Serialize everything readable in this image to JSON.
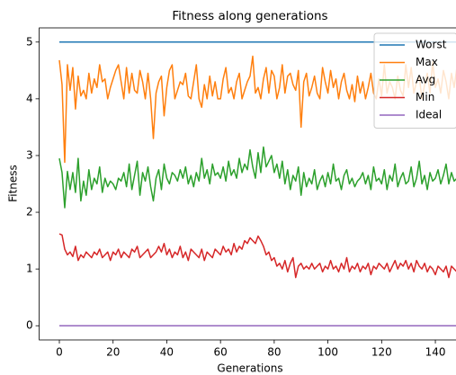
{
  "chart_data": {
    "type": "line",
    "title": "Fitness along generations",
    "xlabel": "Generations",
    "ylabel": "Fitness",
    "x": [
      0,
      1,
      2,
      3,
      4,
      5,
      6,
      7,
      8,
      9,
      10,
      11,
      12,
      13,
      14,
      15,
      16,
      17,
      18,
      19,
      20,
      21,
      22,
      23,
      24,
      25,
      26,
      27,
      28,
      29,
      30,
      31,
      32,
      33,
      34,
      35,
      36,
      37,
      38,
      39,
      40,
      41,
      42,
      43,
      44,
      45,
      46,
      47,
      48,
      49,
      50,
      51,
      52,
      53,
      54,
      55,
      56,
      57,
      58,
      59,
      60,
      61,
      62,
      63,
      64,
      65,
      66,
      67,
      68,
      69,
      70,
      71,
      72,
      73,
      74,
      75,
      76,
      77,
      78,
      79,
      80,
      81,
      82,
      83,
      84,
      85,
      86,
      87,
      88,
      89,
      90,
      91,
      92,
      93,
      94,
      95,
      96,
      97,
      98,
      99,
      100,
      101,
      102,
      103,
      104,
      105,
      106,
      107,
      108,
      109,
      110,
      111,
      112,
      113,
      114,
      115,
      116,
      117,
      118,
      119,
      120,
      121,
      122,
      123,
      124,
      125,
      126,
      127,
      128,
      129,
      130,
      131,
      132,
      133,
      134,
      135,
      136,
      137,
      138,
      139,
      140,
      141,
      142,
      143,
      144,
      145,
      146,
      147,
      148,
      149,
      150
    ],
    "series": [
      {
        "name": "Worst",
        "color": "#1f77b4",
        "values": [
          5,
          5,
          5,
          5,
          5,
          5,
          5,
          5,
          5,
          5,
          5,
          5,
          5,
          5,
          5,
          5,
          5,
          5,
          5,
          5,
          5,
          5,
          5,
          5,
          5,
          5,
          5,
          5,
          5,
          5,
          5,
          5,
          5,
          5,
          5,
          5,
          5,
          5,
          5,
          5,
          5,
          5,
          5,
          5,
          5,
          5,
          5,
          5,
          5,
          5,
          5,
          5,
          5,
          5,
          5,
          5,
          5,
          5,
          5,
          5,
          5,
          5,
          5,
          5,
          5,
          5,
          5,
          5,
          5,
          5,
          5,
          5,
          5,
          5,
          5,
          5,
          5,
          5,
          5,
          5,
          5,
          5,
          5,
          5,
          5,
          5,
          5,
          5,
          5,
          5,
          5,
          5,
          5,
          5,
          5,
          5,
          5,
          5,
          5,
          5,
          5,
          5,
          5,
          5,
          5,
          5,
          5,
          5,
          5,
          5,
          5,
          5,
          5,
          5,
          5,
          5,
          5,
          5,
          5,
          5,
          5,
          5,
          5,
          5,
          5,
          5,
          5,
          5,
          5,
          5,
          5,
          5,
          5,
          5,
          5,
          5,
          5,
          5,
          5,
          5,
          5,
          5,
          5,
          5,
          5,
          5,
          5,
          5,
          5,
          5,
          5
        ]
      },
      {
        "name": "Max",
        "color": "#ff7f0e",
        "values": [
          4.68,
          4.25,
          2.88,
          4.6,
          4.15,
          4.55,
          3.82,
          4.4,
          4.05,
          4.15,
          4.0,
          4.45,
          4.1,
          4.35,
          4.2,
          4.6,
          4.3,
          4.35,
          4.0,
          4.2,
          4.35,
          4.5,
          4.6,
          4.3,
          4.0,
          4.55,
          4.1,
          4.45,
          4.15,
          4.1,
          4.5,
          4.3,
          4.0,
          4.45,
          4.0,
          3.3,
          4.1,
          4.3,
          4.4,
          3.7,
          4.2,
          4.5,
          4.6,
          4.0,
          4.15,
          4.3,
          4.25,
          4.45,
          4.05,
          4.0,
          4.3,
          4.6,
          4.0,
          3.85,
          4.25,
          4.0,
          4.4,
          4.05,
          4.3,
          4.0,
          4.0,
          4.35,
          4.55,
          4.1,
          4.2,
          4.0,
          4.3,
          4.45,
          4.0,
          4.15,
          4.3,
          4.4,
          4.75,
          4.1,
          4.2,
          4.0,
          4.35,
          4.55,
          4.1,
          4.5,
          4.4,
          4.0,
          4.2,
          4.6,
          4.1,
          4.4,
          4.45,
          4.25,
          4.15,
          4.5,
          3.5,
          4.3,
          4.45,
          4.05,
          4.2,
          4.4,
          4.1,
          4.0,
          4.55,
          4.3,
          4.1,
          4.5,
          4.2,
          4.35,
          4.0,
          4.3,
          4.45,
          4.15,
          4.0,
          4.25,
          3.95,
          4.4,
          4.1,
          4.3,
          4.0,
          4.2,
          4.45,
          4.1,
          4.0,
          4.35,
          4.05,
          4.6,
          4.1,
          4.3,
          4.2,
          4.0,
          4.4,
          4.15,
          4.05,
          4.6,
          4.2,
          4.55,
          4.1,
          4.3,
          4.4,
          4.0,
          4.25,
          4.45,
          4.1,
          4.65,
          4.2,
          4.35,
          4.1,
          4.5,
          4.3,
          4.0,
          4.45,
          4.2,
          4.55,
          4.3,
          4.4
        ]
      },
      {
        "name": "Avg",
        "color": "#2ca02c",
        "values": [
          2.95,
          2.7,
          2.08,
          2.72,
          2.4,
          2.7,
          2.35,
          2.95,
          2.2,
          2.55,
          2.3,
          2.75,
          2.4,
          2.6,
          2.5,
          2.8,
          2.35,
          2.6,
          2.45,
          2.55,
          2.5,
          2.4,
          2.6,
          2.55,
          2.7,
          2.45,
          2.85,
          2.4,
          2.65,
          2.9,
          2.3,
          2.7,
          2.55,
          2.8,
          2.45,
          2.2,
          2.6,
          2.75,
          2.4,
          2.85,
          2.6,
          2.5,
          2.7,
          2.65,
          2.55,
          2.75,
          2.6,
          2.8,
          2.5,
          2.65,
          2.45,
          2.7,
          2.55,
          2.95,
          2.6,
          2.75,
          2.5,
          2.85,
          2.65,
          2.7,
          2.6,
          2.8,
          2.55,
          2.9,
          2.65,
          2.75,
          2.6,
          2.95,
          2.7,
          2.85,
          2.75,
          3.1,
          2.8,
          2.6,
          3.05,
          2.7,
          3.15,
          2.8,
          2.9,
          3.0,
          2.7,
          2.85,
          2.6,
          2.9,
          2.5,
          2.75,
          2.4,
          2.65,
          2.55,
          2.8,
          2.3,
          2.7,
          2.45,
          2.6,
          2.5,
          2.75,
          2.4,
          2.55,
          2.65,
          2.45,
          2.7,
          2.5,
          2.85,
          2.55,
          2.6,
          2.4,
          2.65,
          2.75,
          2.5,
          2.6,
          2.45,
          2.55,
          2.6,
          2.7,
          2.5,
          2.65,
          2.4,
          2.8,
          2.55,
          2.6,
          2.5,
          2.75,
          2.4,
          2.65,
          2.55,
          2.85,
          2.45,
          2.6,
          2.7,
          2.5,
          2.55,
          2.8,
          2.45,
          2.6,
          2.9,
          2.5,
          2.65,
          2.4,
          2.7,
          2.55,
          2.6,
          2.75,
          2.5,
          2.65,
          2.85,
          2.5,
          2.7,
          2.55,
          2.6,
          2.65,
          2.55
        ]
      },
      {
        "name": "Min",
        "color": "#d62728",
        "values": [
          1.62,
          1.6,
          1.35,
          1.25,
          1.3,
          1.22,
          1.4,
          1.15,
          1.25,
          1.2,
          1.3,
          1.25,
          1.2,
          1.3,
          1.25,
          1.35,
          1.2,
          1.25,
          1.3,
          1.15,
          1.3,
          1.25,
          1.35,
          1.2,
          1.3,
          1.25,
          1.2,
          1.35,
          1.3,
          1.4,
          1.2,
          1.25,
          1.3,
          1.35,
          1.2,
          1.25,
          1.3,
          1.4,
          1.3,
          1.45,
          1.25,
          1.35,
          1.2,
          1.3,
          1.25,
          1.4,
          1.2,
          1.3,
          1.15,
          1.35,
          1.3,
          1.25,
          1.2,
          1.35,
          1.15,
          1.3,
          1.25,
          1.2,
          1.35,
          1.3,
          1.25,
          1.4,
          1.3,
          1.35,
          1.25,
          1.45,
          1.3,
          1.4,
          1.35,
          1.5,
          1.45,
          1.55,
          1.5,
          1.45,
          1.58,
          1.5,
          1.4,
          1.25,
          1.3,
          1.15,
          1.2,
          1.05,
          1.1,
          1.0,
          1.15,
          0.95,
          1.1,
          1.2,
          0.85,
          1.05,
          1.1,
          1.0,
          1.05,
          1.0,
          1.1,
          1.0,
          1.05,
          1.1,
          0.95,
          1.05,
          1.0,
          1.15,
          1.0,
          1.05,
          0.95,
          1.1,
          1.0,
          1.2,
          0.95,
          1.05,
          1.0,
          1.1,
          0.95,
          1.05,
          1.0,
          1.1,
          0.9,
          1.05,
          1.0,
          1.1,
          1.05,
          1.0,
          1.1,
          0.95,
          1.05,
          1.15,
          1.0,
          1.1,
          1.05,
          1.15,
          1.0,
          1.1,
          0.95,
          1.15,
          1.05,
          1.0,
          1.1,
          0.95,
          1.05,
          1.0,
          0.9,
          1.05,
          1.0,
          0.95,
          1.05,
          0.85,
          1.05,
          1.0,
          0.95,
          0.85,
          0.8
        ]
      },
      {
        "name": "Ideal",
        "color": "#9467bd",
        "values": [
          0,
          0,
          0,
          0,
          0,
          0,
          0,
          0,
          0,
          0,
          0,
          0,
          0,
          0,
          0,
          0,
          0,
          0,
          0,
          0,
          0,
          0,
          0,
          0,
          0,
          0,
          0,
          0,
          0,
          0,
          0,
          0,
          0,
          0,
          0,
          0,
          0,
          0,
          0,
          0,
          0,
          0,
          0,
          0,
          0,
          0,
          0,
          0,
          0,
          0,
          0,
          0,
          0,
          0,
          0,
          0,
          0,
          0,
          0,
          0,
          0,
          0,
          0,
          0,
          0,
          0,
          0,
          0,
          0,
          0,
          0,
          0,
          0,
          0,
          0,
          0,
          0,
          0,
          0,
          0,
          0,
          0,
          0,
          0,
          0,
          0,
          0,
          0,
          0,
          0,
          0,
          0,
          0,
          0,
          0,
          0,
          0,
          0,
          0,
          0,
          0,
          0,
          0,
          0,
          0,
          0,
          0,
          0,
          0,
          0,
          0,
          0,
          0,
          0,
          0,
          0,
          0,
          0,
          0,
          0,
          0,
          0,
          0,
          0,
          0,
          0,
          0,
          0,
          0,
          0,
          0,
          0,
          0,
          0,
          0,
          0,
          0,
          0,
          0,
          0,
          0,
          0,
          0,
          0,
          0,
          0,
          0,
          0,
          0,
          0,
          0
        ]
      }
    ],
    "xlim": [
      -7.5,
      157.5
    ],
    "xticks": [
      0,
      20,
      40,
      60,
      80,
      100,
      120,
      140
    ],
    "ylim": [
      -0.25,
      5.25
    ],
    "yticks": [
      0,
      1,
      2,
      3,
      4,
      5
    ],
    "legend": "upper right"
  }
}
